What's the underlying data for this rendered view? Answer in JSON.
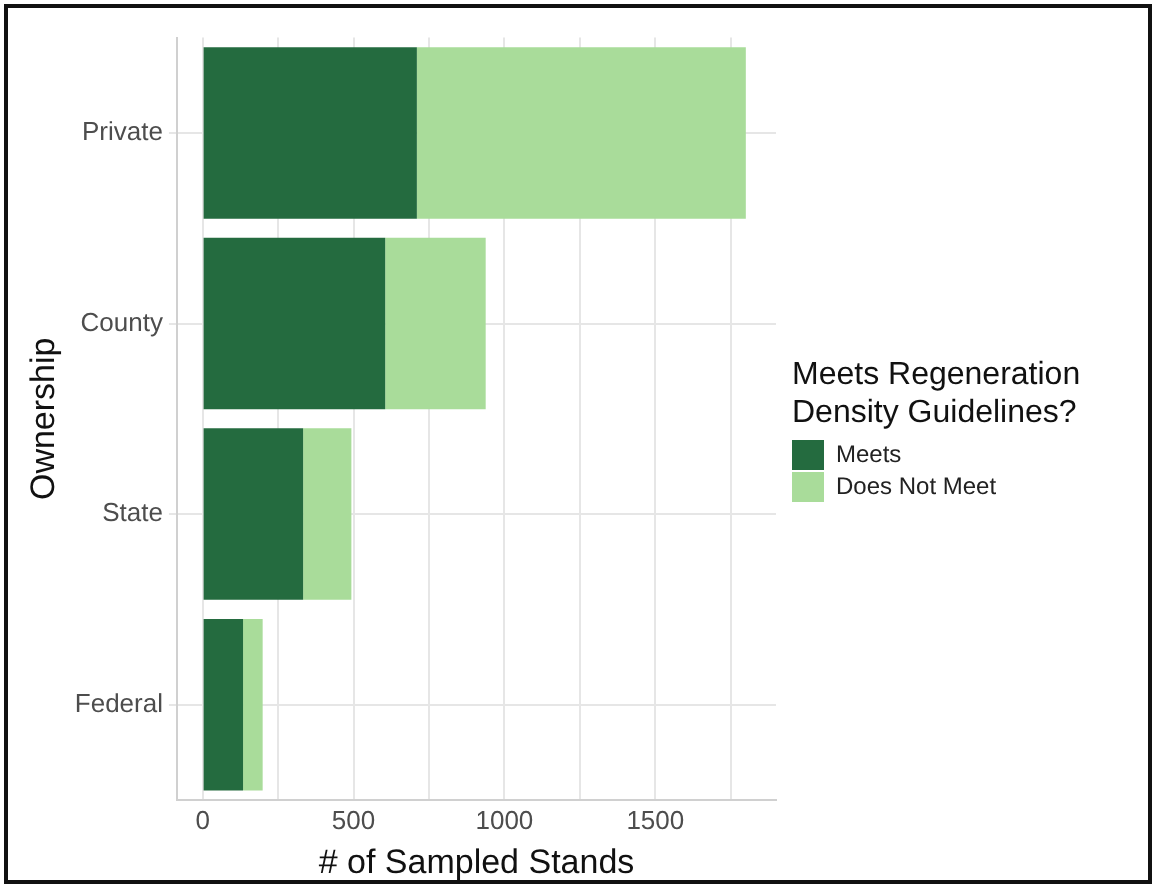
{
  "chart_data": {
    "type": "bar",
    "orientation": "horizontal",
    "stacked": true,
    "xlabel": "# of Sampled Stands",
    "ylabel": "Ownership",
    "legend_title": "Meets Regeneration\nDensity Guidelines?",
    "legend": "right",
    "categories": [
      "Private",
      "County",
      "State",
      "Federal"
    ],
    "series": [
      {
        "name": "Meets",
        "color": "#246b3f",
        "values": [
          710,
          605,
          333,
          134
        ]
      },
      {
        "name": "Does Not Meet",
        "color": "#a9dc9a",
        "values": [
          1090,
          333,
          160,
          65
        ]
      }
    ],
    "xlim": [
      -85,
      1900
    ],
    "xticks": [
      0,
      {
        "value": 250,
        "label": null
      },
      500,
      {
        "value": 750,
        "label": null
      },
      1000,
      {
        "value": 1250,
        "label": null
      },
      1500,
      {
        "value": 1750,
        "label": null
      }
    ],
    "grid": true
  }
}
